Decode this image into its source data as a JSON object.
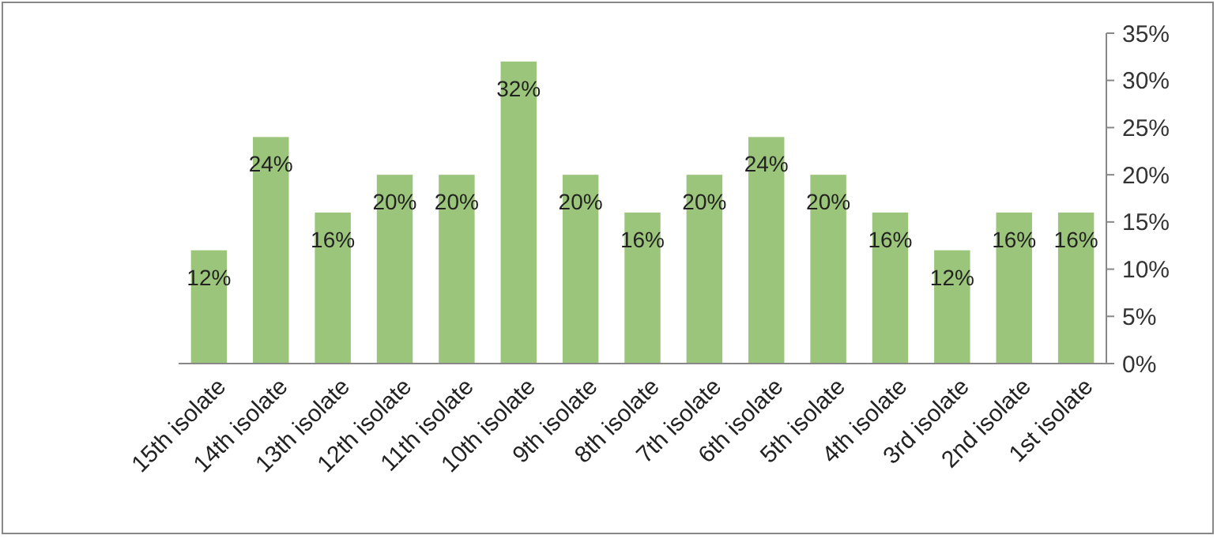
{
  "chart_data": {
    "type": "bar",
    "categories": [
      "15th isolate",
      "14th isolate",
      "13th isolate",
      "12th isolate",
      "11th isolate",
      "10th isolate",
      "9th isolate",
      "8th isolate",
      "7th isolate",
      "6th isolate",
      "5th isolate",
      "4th isolate",
      "3rd isolate",
      "2nd isolate",
      "1st isolate"
    ],
    "values": [
      12,
      24,
      16,
      20,
      20,
      32,
      20,
      16,
      20,
      24,
      20,
      16,
      12,
      16,
      16
    ],
    "value_labels": [
      "12%",
      "24%",
      "16%",
      "20%",
      "20%",
      "32%",
      "20%",
      "16%",
      "20%",
      "24%",
      "20%",
      "16%",
      "12%",
      "16%",
      "16%"
    ],
    "color": "#9bc57a",
    "ylim": [
      0,
      35
    ],
    "yticks": [
      {
        "value": 0,
        "label": "0%"
      },
      {
        "value": 5,
        "label": "5%"
      },
      {
        "value": 10,
        "label": "10%"
      },
      {
        "value": 15,
        "label": "15%"
      },
      {
        "value": 20,
        "label": "20%"
      },
      {
        "value": 25,
        "label": "25%"
      },
      {
        "value": 30,
        "label": "30%"
      },
      {
        "value": 35,
        "label": "35%"
      }
    ],
    "grid": false
  }
}
